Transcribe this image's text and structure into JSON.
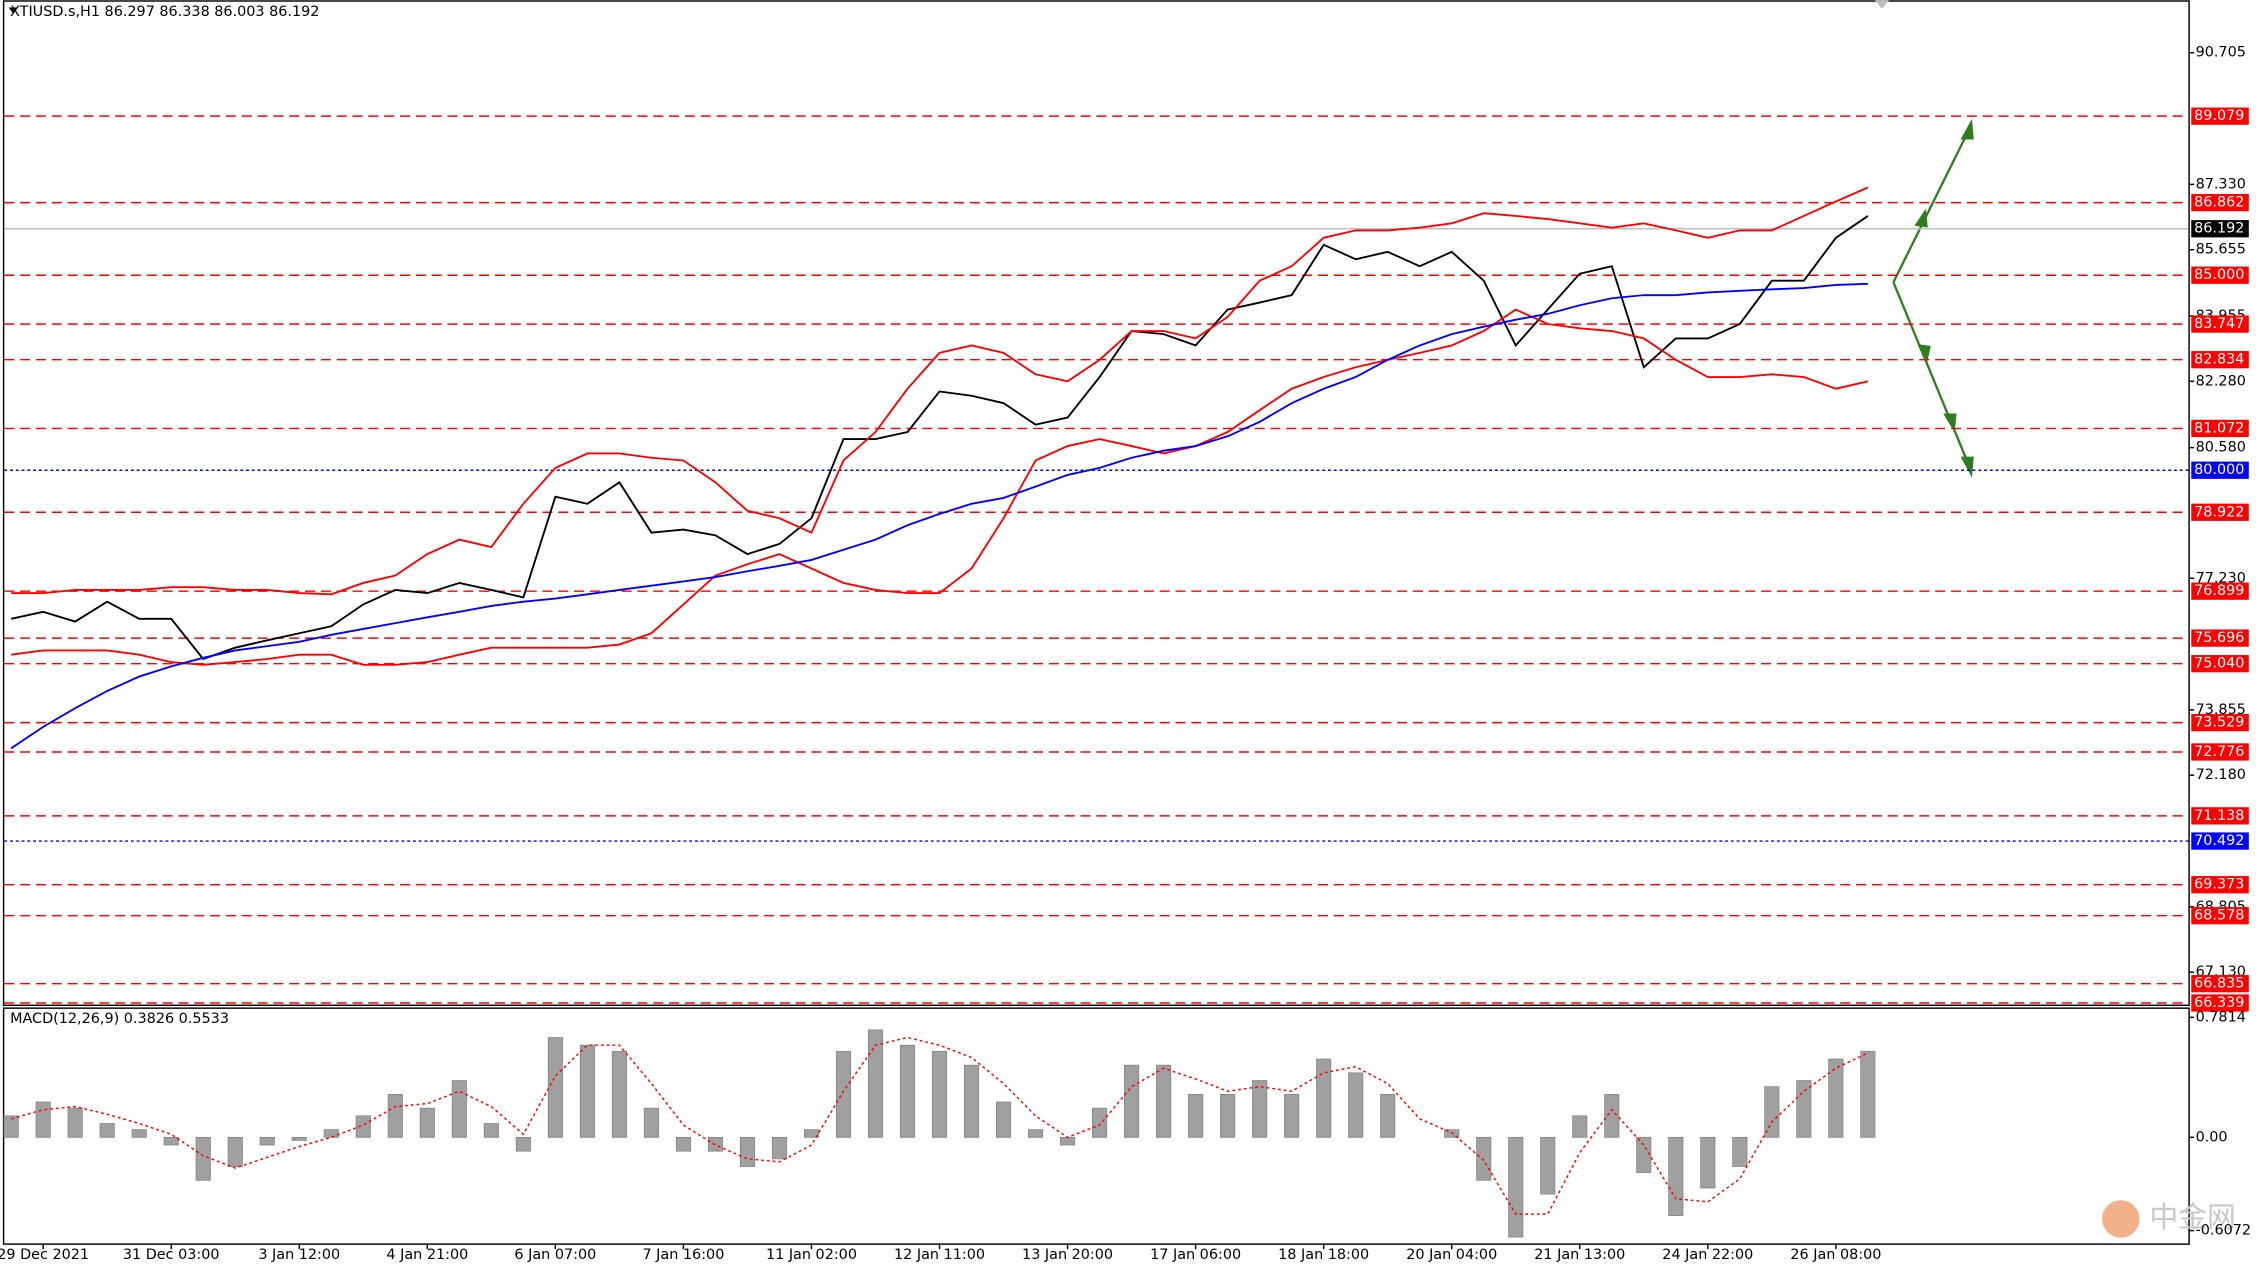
{
  "chart_data": [
    {
      "type": "line",
      "title": "XTIUSD.s,H1  86.297 86.338 86.003 86.192",
      "categories": [
        null,
        "29 Dec 2021",
        null,
        null,
        null,
        "31 Dec 03:00",
        null,
        null,
        null,
        "3 Jan 12:00",
        null,
        null,
        null,
        "4 Jan 21:00",
        null,
        null,
        null,
        "6 Jan 07:00",
        null,
        null,
        null,
        "7 Jan 16:00",
        null,
        null,
        null,
        "11 Jan 02:00",
        null,
        null,
        null,
        "12 Jan 11:00",
        null,
        null,
        null,
        "13 Jan 20:00",
        null,
        null,
        null,
        "17 Jan 06:00",
        null,
        null,
        null,
        "18 Jan 18:00",
        null,
        null,
        null,
        "20 Jan 04:00",
        null,
        null,
        null,
        "21 Jan 13:00",
        null,
        null,
        null,
        "24 Jan 22:00",
        null,
        null,
        null,
        "26 Jan 08:00",
        null
      ],
      "series": [
        {
          "color": "#000000",
          "values": [
            76.19,
            76.37,
            76.12,
            76.63,
            76.19,
            76.19,
            75.16,
            75.45,
            75.64,
            75.82,
            76.0,
            76.56,
            76.93,
            76.85,
            77.11,
            76.93,
            76.74,
            79.32,
            79.14,
            79.69,
            78.4,
            78.48,
            78.33,
            77.85,
            78.11,
            78.77,
            80.8,
            80.8,
            80.98,
            82.02,
            81.91,
            81.72,
            81.17,
            81.35,
            82.39,
            83.57,
            83.49,
            83.2,
            84.12,
            84.3,
            84.49,
            85.78,
            85.41,
            85.6,
            85.23,
            85.6,
            84.86,
            83.2,
            84.12,
            85.04,
            85.23,
            82.64,
            83.38,
            83.38,
            83.75,
            84.86,
            84.86,
            85.96,
            86.52
          ]
        },
        {
          "color": "#ff0000",
          "values": [
            76.85,
            76.85,
            76.93,
            76.93,
            76.93,
            77.0,
            77.0,
            76.93,
            76.93,
            76.85,
            76.82,
            77.11,
            77.3,
            77.85,
            78.22,
            78.03,
            79.14,
            80.06,
            80.43,
            80.43,
            80.32,
            80.25,
            79.69,
            78.96,
            78.77,
            78.4,
            80.25,
            80.98,
            82.09,
            83.01,
            83.2,
            83.01,
            82.46,
            82.28,
            82.83,
            83.57,
            83.57,
            83.38,
            83.93,
            84.86,
            85.23,
            85.96,
            86.15,
            86.15,
            86.22,
            86.33,
            86.59,
            86.52,
            86.44,
            86.33,
            86.22,
            86.33,
            86.15,
            85.96,
            86.15,
            86.15,
            86.52,
            86.89,
            87.25
          ]
        },
        {
          "color": "#ff0000",
          "values": [
            75.27,
            75.38,
            75.38,
            75.38,
            75.27,
            75.08,
            75.01,
            75.08,
            75.16,
            75.27,
            75.27,
            75.01,
            75.01,
            75.08,
            75.27,
            75.45,
            75.45,
            75.45,
            75.45,
            75.53,
            75.82,
            76.56,
            77.3,
            77.59,
            77.85,
            77.48,
            77.11,
            76.93,
            76.85,
            76.85,
            77.48,
            78.77,
            80.25,
            80.62,
            80.8,
            80.62,
            80.43,
            80.62,
            80.98,
            81.54,
            82.09,
            82.39,
            82.64,
            82.83,
            83.01,
            83.2,
            83.57,
            84.12,
            83.75,
            83.64,
            83.57,
            83.38,
            82.83,
            82.39,
            82.39,
            82.46,
            82.39,
            82.09,
            82.28
          ]
        },
        {
          "color": "#0000ff",
          "values": [
            72.87,
            73.42,
            73.9,
            74.34,
            74.71,
            74.97,
            75.19,
            75.38,
            75.49,
            75.6,
            75.78,
            75.93,
            76.08,
            76.23,
            76.37,
            76.52,
            76.63,
            76.71,
            76.82,
            76.93,
            77.04,
            77.15,
            77.26,
            77.41,
            77.55,
            77.7,
            77.96,
            78.22,
            78.59,
            78.88,
            79.14,
            79.29,
            79.58,
            79.88,
            80.06,
            80.32,
            80.5,
            80.62,
            80.87,
            81.24,
            81.72,
            82.09,
            82.39,
            82.83,
            83.2,
            83.49,
            83.68,
            83.86,
            84.01,
            84.23,
            84.41,
            84.49,
            84.49,
            84.56,
            84.6,
            84.64,
            84.67,
            84.75,
            84.78
          ]
        }
      ],
      "ylim": [
        66.3,
        92.05
      ],
      "yticks": [
        90.705,
        {
          "value": 87.33,
          "label": "87.330"
        },
        85.655,
        83.955,
        {
          "value": 82.28,
          "label": "82.280"
        },
        {
          "value": 80.58,
          "label": "80.580"
        },
        {
          "value": 77.23,
          "label": "77.230"
        },
        73.855,
        {
          "value": 72.18,
          "label": "72.180"
        },
        68.805,
        {
          "value": 67.13,
          "label": "67.130"
        }
      ],
      "level_color": "#ff0000",
      "levels": [
        {
          "value": 89.079,
          "label": "89.079"
        },
        {
          "value": 86.862,
          "label": "86.862"
        },
        {
          "value": 85.0,
          "label": "85.000"
        },
        {
          "value": 83.747,
          "label": "83.747"
        },
        {
          "value": 82.834,
          "label": "82.834"
        },
        {
          "value": 81.072,
          "label": "81.072"
        },
        {
          "value": 78.922,
          "label": "78.922"
        },
        {
          "value": 76.899,
          "label": "76.899"
        },
        {
          "value": 75.696,
          "label": "75.696"
        },
        {
          "value": 75.04,
          "label": "75.040"
        },
        {
          "value": 73.529,
          "label": "73.529"
        },
        {
          "value": 72.776,
          "label": "72.776"
        },
        {
          "value": 71.138,
          "label": "71.138"
        },
        {
          "value": 69.373,
          "label": "69.373"
        },
        {
          "value": 68.578,
          "label": "68.578"
        },
        {
          "value": 66.835,
          "label": "66.835"
        },
        {
          "value": 66.339,
          "label": "66.339"
        }
      ],
      "blue_level_color": "#0000ff",
      "blue_levels": [
        {
          "value": 80.0,
          "label": "80.000"
        },
        {
          "value": 70.492,
          "label": "70.492"
        }
      ],
      "last_price": {
        "value": 86.192,
        "label": "86.192"
      },
      "watermark": "中金网"
    },
    {
      "type": "bar",
      "title": "MACD(12,26,9) 0.3826 0.5533",
      "color": "#a0a0a0",
      "values": [
        0.14,
        0.23,
        0.19,
        0.09,
        0.05,
        -0.05,
        -0.28,
        -0.19,
        -0.05,
        -0.02,
        0.05,
        0.14,
        0.28,
        0.19,
        0.37,
        0.09,
        -0.09,
        0.65,
        0.6,
        0.56,
        0.19,
        -0.09,
        -0.09,
        -0.19,
        -0.14,
        0.05,
        0.56,
        0.7,
        0.6,
        0.56,
        0.47,
        0.23,
        0.05,
        -0.05,
        0.19,
        0.47,
        0.47,
        0.28,
        0.28,
        0.37,
        0.28,
        0.51,
        0.42,
        0.28,
        0,
        0.05,
        -0.28,
        -0.65,
        -0.37,
        0.14,
        0.28,
        -0.23,
        -0.51,
        -0.33,
        -0.19,
        0.33,
        0.37,
        0.51,
        0.56
      ],
      "signal": {
        "color": "#ff0000",
        "values": [
          0.12,
          0.18,
          0.2,
          0.15,
          0.09,
          0.02,
          -0.12,
          -0.2,
          -0.13,
          -0.06,
          0.0,
          0.08,
          0.2,
          0.22,
          0.3,
          0.2,
          0.02,
          0.4,
          0.6,
          0.6,
          0.35,
          0.08,
          -0.05,
          -0.14,
          -0.16,
          -0.05,
          0.3,
          0.6,
          0.65,
          0.6,
          0.52,
          0.35,
          0.14,
          0.0,
          0.08,
          0.33,
          0.45,
          0.38,
          0.3,
          0.33,
          0.3,
          0.42,
          0.46,
          0.35,
          0.12,
          0.03,
          -0.15,
          -0.5,
          -0.5,
          -0.1,
          0.18,
          -0.05,
          -0.4,
          -0.42,
          -0.27,
          0.1,
          0.3,
          0.45,
          0.55
        ]
      },
      "ylim": [
        -0.7,
        0.846
      ],
      "yticks": [
        0.7814,
        {
          "value": 0,
          "label": "0.00"
        },
        -0.6072
      ]
    }
  ]
}
